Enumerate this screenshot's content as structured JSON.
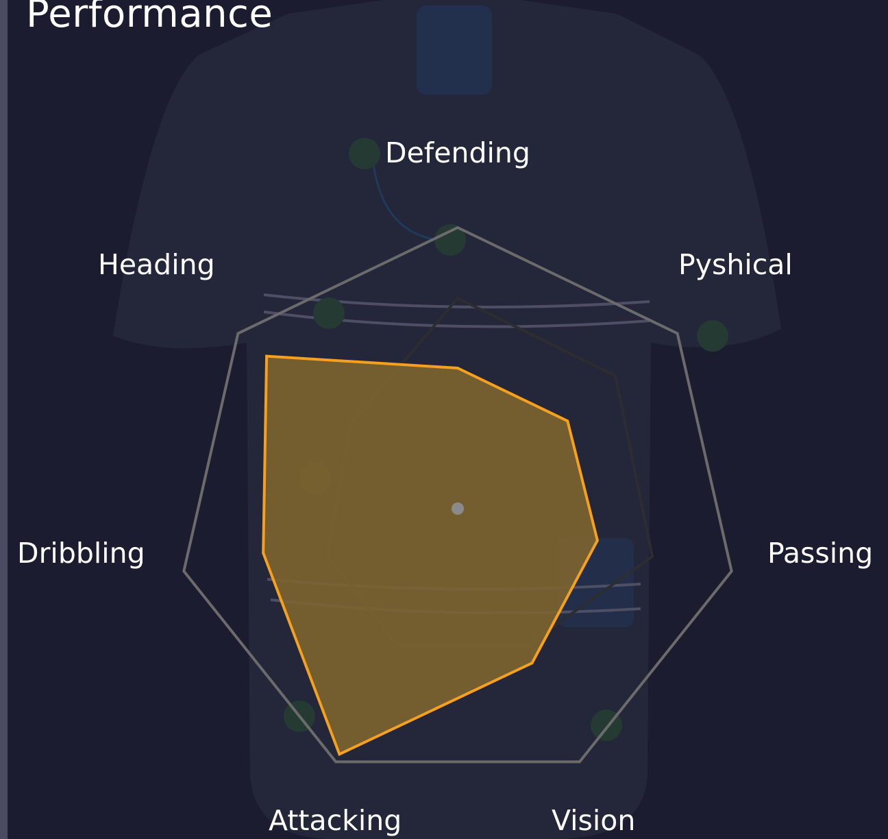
{
  "panel": {
    "title": "Performance"
  },
  "colors": {
    "background": "#1b1c2f",
    "shirt": "#24263a",
    "grid": "#6b6b6b",
    "series_stroke": "#f5a01f",
    "series_fill": "#7c6330"
  },
  "chart_data": {
    "type": "radar",
    "categories": [
      "Defending",
      "Pyshical",
      "Passing",
      "Vision",
      "Attacking",
      "Dribbling",
      "Heading"
    ],
    "series": [
      {
        "values": [
          50,
          50,
          51,
          61,
          97,
          71,
          87
        ]
      }
    ],
    "rmax": 100
  }
}
